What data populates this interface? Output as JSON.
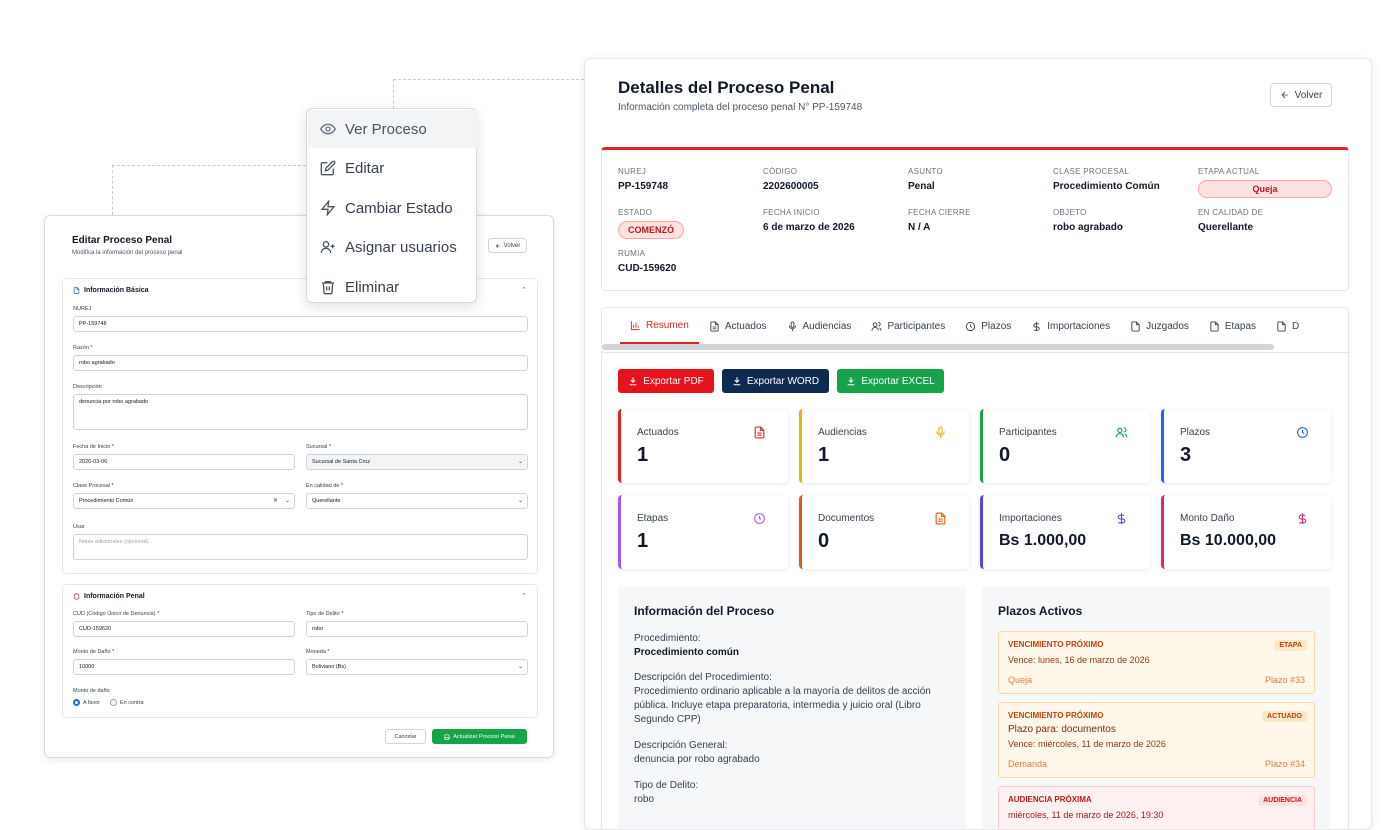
{
  "menu": {
    "items": [
      {
        "label": "Ver Proceso",
        "icon": "eye-icon"
      },
      {
        "label": "Editar",
        "icon": "edit-icon"
      },
      {
        "label": "Cambiar Estado",
        "icon": "bolt-icon"
      },
      {
        "label": "Asignar usuarios",
        "icon": "user-plus-icon"
      },
      {
        "label": "Eliminar",
        "icon": "trash-icon"
      }
    ]
  },
  "detail": {
    "title": "Detalles del Proceso Penal",
    "subtitle": "Información completa del proceso penal N° PP-159748",
    "back_label": "Volver",
    "fields": {
      "nurej": {
        "label": "NUREJ",
        "value": "PP-159748"
      },
      "codigo": {
        "label": "CÓDIGO",
        "value": "2202600005"
      },
      "asunto": {
        "label": "ASUNTO",
        "value": "Penal"
      },
      "clase": {
        "label": "CLASE PROCESAL",
        "value": "Procedimiento Común"
      },
      "etapa": {
        "label": "ETAPA ACTUAL",
        "value": "Queja"
      },
      "estado": {
        "label": "ESTADO",
        "value": "COMENZÓ"
      },
      "fecha_inicio": {
        "label": "FECHA INICIO",
        "value": "6 de marzo de 2026"
      },
      "fecha_cierre": {
        "label": "FECHA CIERRE",
        "value": "N / A"
      },
      "objeto": {
        "label": "OBJETO",
        "value": "robo agrabado"
      },
      "calidad": {
        "label": "EN CALIDAD DE",
        "value": "Querellante"
      },
      "rumia": {
        "label": "RUMIA",
        "value": "CUD-159620"
      }
    },
    "tabs": [
      "Resumen",
      "Actuados",
      "Audiencias",
      "Participantes",
      "Plazos",
      "Importaciones",
      "Juzgados",
      "Etapas",
      "D"
    ],
    "export": {
      "pdf": "Exportar PDF",
      "word": "Exportar WORD",
      "excel": "Exportar EXCEL"
    },
    "stats": [
      {
        "label": "Actuados",
        "value": "1",
        "color": "#dc2626",
        "icon": "document-icon"
      },
      {
        "label": "Audiencias",
        "value": "1",
        "color": "#eab308",
        "icon": "microphone-icon"
      },
      {
        "label": "Participantes",
        "value": "0",
        "color": "#16a34a",
        "icon": "users-icon"
      },
      {
        "label": "Plazos",
        "value": "3",
        "color": "#2563eb",
        "icon": "clock-icon"
      },
      {
        "label": "Etapas",
        "value": "1",
        "color": "#a855f7",
        "icon": "clock-icon"
      },
      {
        "label": "Documentos",
        "value": "0",
        "color": "#ea580c",
        "icon": "document-icon"
      },
      {
        "label": "Importaciones",
        "value": "Bs 1.000,00",
        "color": "#4f46e5",
        "icon": "dollar-icon"
      },
      {
        "label": "Monto Daño",
        "value": "Bs 10.000,00",
        "color": "#db2777",
        "icon": "dollar-icon"
      }
    ],
    "proceso": {
      "title": "Información del Proceso",
      "procedimiento_label": "Procedimiento:",
      "procedimiento_value": "Procedimiento común",
      "desc_proc_label": "Descripción del Procedimiento:",
      "desc_proc_value": "Procedimiento ordinario aplicable a la mayoría de delitos de acción pública. Incluye etapa preparatoria, intermedia y juicio oral (Libro Segundo CPP)",
      "desc_gen_label": "Descripción General:",
      "desc_gen_value": "denuncia por robo agrabado",
      "tipo_label": "Tipo de Delito:",
      "tipo_value": "robo"
    },
    "plazos": {
      "title": "Plazos Activos",
      "items": [
        {
          "title": "VENCIMIENTO PRÓXIMO",
          "badge": "ETAPA",
          "line": "Vence: lunes, 16 de marzo de 2026",
          "footer_left": "Queja",
          "footer_right": "Plazo #33"
        },
        {
          "title": "VENCIMIENTO PRÓXIMO",
          "badge": "ACTUADO",
          "extra": "Plazo para: documentos",
          "line": "Vence: miércoles, 11 de marzo de 2026",
          "footer_left": "Demanda",
          "footer_right": "Plazo #34"
        },
        {
          "title": "AUDIENCIA PRÓXIMA",
          "badge": "AUDIENCIA",
          "line": "miércoles, 11 de marzo de 2026, 19:30"
        }
      ]
    }
  },
  "edit": {
    "title": "Editar Proceso Penal",
    "subtitle": "Modifica la información del proceso penal",
    "back_label": "Volver",
    "basic": {
      "title": "Información Básica",
      "nurej_label": "NUREJ",
      "nurej_value": "PP-159748",
      "razon_label": "Razón *",
      "razon_value": "robo agrabado",
      "descripcion_label": "Descripción",
      "descripcion_value": "denuncia por robo agrabado",
      "fecha_label": "Fecha de Inicio *",
      "fecha_value": "2026-03-06",
      "sucursal_label": "Sucursal *",
      "sucursal_value": "Sucursal de Santa Cruz",
      "clase_label": "Clase Procesal *",
      "clase_value": "Procedimiento Común",
      "calidad_label": "En calidad de *",
      "calidad_value": "Querellante",
      "usar_label": "Usar",
      "usar_placeholder": "Notas adicionales (opcional)..."
    },
    "penal": {
      "title": "Información Penal",
      "cud_label": "CUD (Código Único de Denuncia) *",
      "cud_value": "CUD-159620",
      "tipo_label": "Tipo de Delito *",
      "tipo_value": "robo",
      "monto_label": "Monto de Daño *",
      "monto_value": "10000",
      "moneda_label": "Moneda *",
      "moneda_value": "Boliviano (Bs)",
      "monto_dano_label": "Monto de daño",
      "radio_favor": "A favor",
      "radio_contra": "En contra"
    },
    "cancel_label": "Cancelar",
    "submit_label": "Actualizar Proceso Penal"
  }
}
